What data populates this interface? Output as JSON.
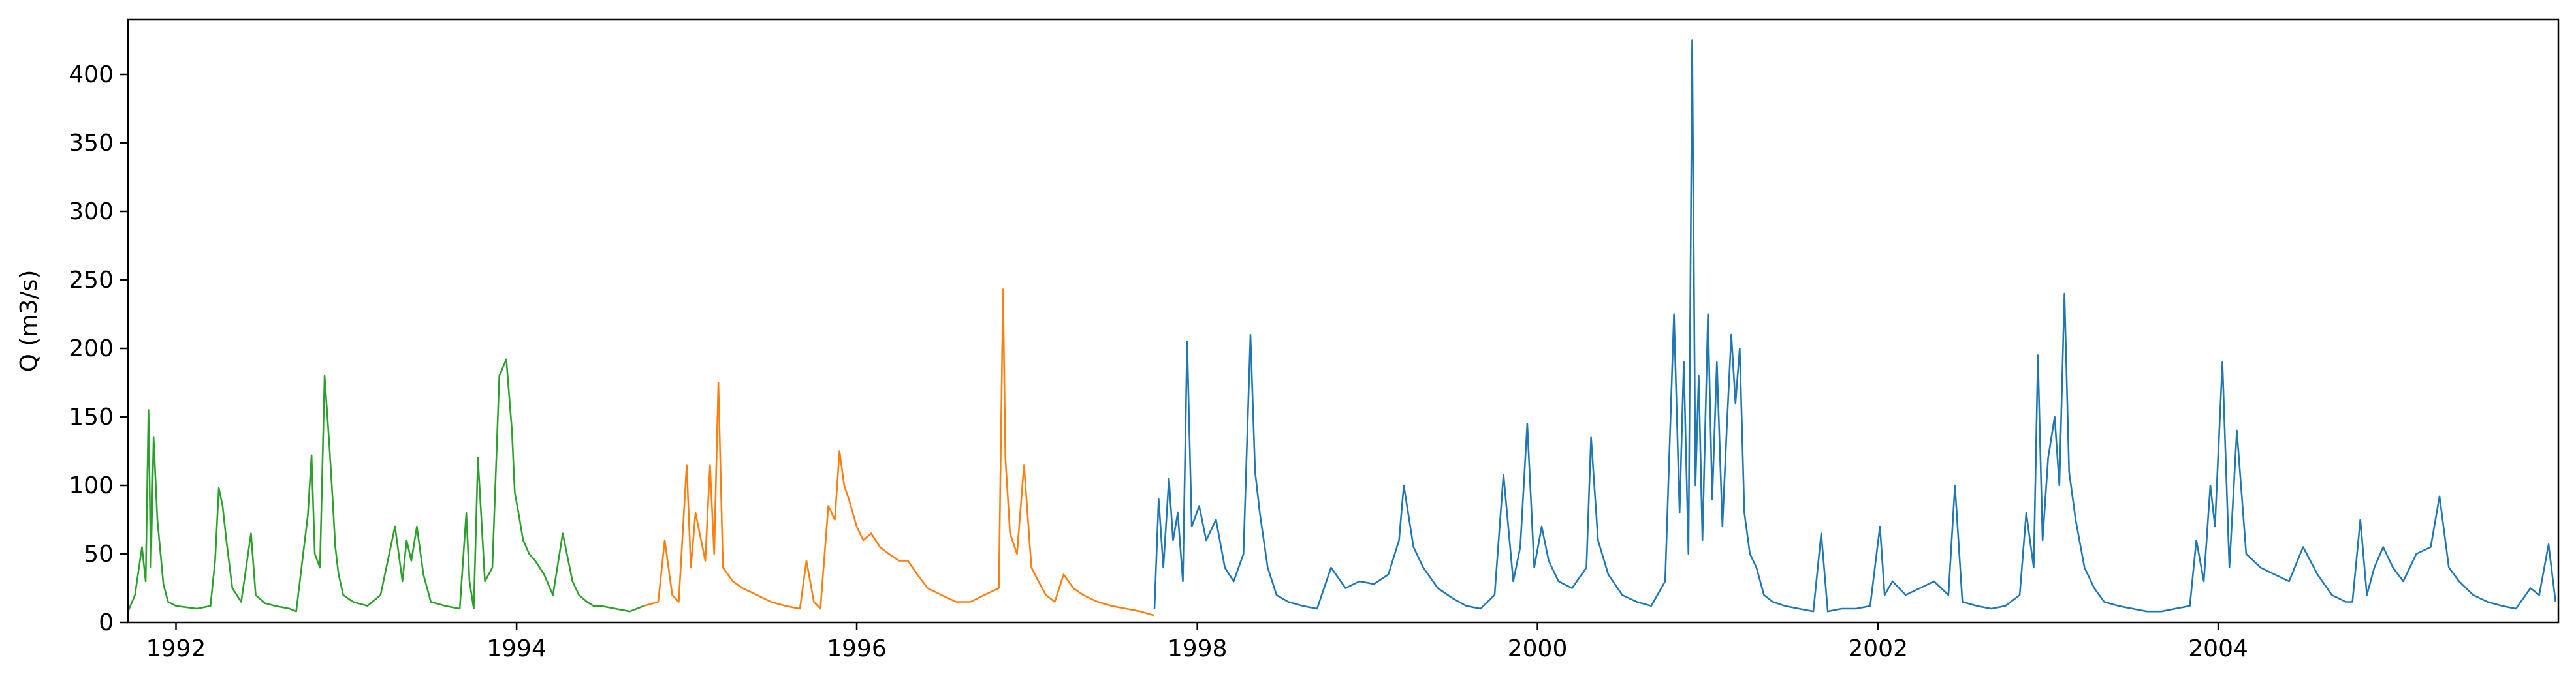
{
  "chart_data": {
    "type": "line",
    "title": "",
    "xlabel": "",
    "ylabel": "Q (m3/s)",
    "xlim": [
      "1991-09-20",
      "2005-12-31"
    ],
    "ylim": [
      0,
      440
    ],
    "x_ticks": [
      "1992",
      "1994",
      "1996",
      "1998",
      "2000",
      "2002",
      "2004"
    ],
    "y_ticks": [
      0,
      50,
      100,
      150,
      200,
      250,
      300,
      350,
      400
    ],
    "grid": false,
    "legend": "none",
    "series": [
      {
        "color": "#2ca02c",
        "x": [
          "1991-09-20",
          "1991-10-05",
          "1991-10-20",
          "1991-10-28",
          "1991-11-03",
          "1991-11-08",
          "1991-11-14",
          "1991-11-22",
          "1991-12-05",
          "1991-12-15",
          "1992-01-01",
          "1992-02-15",
          "1992-03-15",
          "1992-03-25",
          "1992-04-02",
          "1992-04-10",
          "1992-04-18",
          "1992-05-01",
          "1992-05-20",
          "1992-06-10",
          "1992-06-20",
          "1992-07-10",
          "1992-08-01",
          "1992-09-01",
          "1992-09-15",
          "1992-10-10",
          "1992-10-18",
          "1992-10-25",
          "1992-11-05",
          "1992-11-15",
          "1992-11-25",
          "1992-12-03",
          "1992-12-08",
          "1992-12-15",
          "1992-12-25",
          "1993-01-15",
          "1993-02-15",
          "1993-03-15",
          "1993-04-15",
          "1993-05-01",
          "1993-05-10",
          "1993-05-20",
          "1993-06-01",
          "1993-06-15",
          "1993-07-01",
          "1993-08-01",
          "1993-09-01",
          "1993-09-15",
          "1993-09-22",
          "1993-10-01",
          "1993-10-10",
          "1993-10-25",
          "1993-11-10",
          "1993-11-25",
          "1993-12-10",
          "1993-12-22",
          "1993-12-28",
          "1994-01-05",
          "1994-01-15",
          "1994-01-28",
          "1994-02-10",
          "1994-03-01",
          "1994-03-20",
          "1994-04-10",
          "1994-05-01",
          "1994-05-15",
          "1994-06-01",
          "1994-06-15",
          "1994-07-01",
          "1994-08-01",
          "1994-09-01",
          "1994-10-01"
        ],
        "values": [
          8,
          20,
          55,
          30,
          155,
          40,
          135,
          75,
          28,
          15,
          12,
          10,
          12,
          45,
          98,
          85,
          60,
          25,
          15,
          65,
          20,
          14,
          12,
          10,
          8,
          78,
          122,
          50,
          40,
          180,
          130,
          85,
          55,
          35,
          20,
          15,
          12,
          20,
          70,
          30,
          60,
          45,
          70,
          35,
          15,
          12,
          10,
          80,
          30,
          10,
          120,
          30,
          40,
          180,
          192,
          140,
          95,
          80,
          60,
          50,
          45,
          35,
          20,
          65,
          30,
          20,
          15,
          12,
          12,
          10,
          8,
          12
        ]
      },
      {
        "color": "#ff7f0e",
        "x": [
          "1994-10-01",
          "1994-11-01",
          "1994-11-15",
          "1994-12-01",
          "1994-12-15",
          "1995-01-01",
          "1995-01-10",
          "1995-01-20",
          "1995-02-01",
          "1995-02-10",
          "1995-02-20",
          "1995-03-01",
          "1995-03-10",
          "1995-03-20",
          "1995-04-10",
          "1995-05-01",
          "1995-06-01",
          "1995-07-01",
          "1995-08-01",
          "1995-09-01",
          "1995-09-15",
          "1995-10-01",
          "1995-10-15",
          "1995-11-01",
          "1995-11-15",
          "1995-11-25",
          "1995-12-05",
          "1995-12-15",
          "1996-01-01",
          "1996-01-15",
          "1996-02-01",
          "1996-02-20",
          "1996-03-10",
          "1996-04-01",
          "1996-04-20",
          "1996-05-10",
          "1996-06-01",
          "1996-07-01",
          "1996-08-01",
          "1996-09-01",
          "1996-10-01",
          "1996-11-01",
          "1996-11-10",
          "1996-11-15",
          "1996-11-25",
          "1996-12-10",
          "1996-12-25",
          "1997-01-10",
          "1997-01-25",
          "1997-02-10",
          "1997-03-01",
          "1997-03-20",
          "1997-04-10",
          "1997-05-01",
          "1997-06-01",
          "1997-07-01",
          "1997-08-01",
          "1997-09-01",
          "1997-10-01"
        ],
        "values": [
          12,
          15,
          60,
          20,
          15,
          115,
          40,
          80,
          60,
          45,
          115,
          50,
          175,
          40,
          30,
          25,
          20,
          15,
          12,
          10,
          45,
          15,
          10,
          85,
          75,
          125,
          100,
          90,
          70,
          60,
          65,
          55,
          50,
          45,
          45,
          35,
          25,
          20,
          15,
          15,
          20,
          25,
          243,
          120,
          65,
          50,
          115,
          40,
          30,
          20,
          15,
          35,
          25,
          20,
          15,
          12,
          10,
          8,
          5
        ]
      },
      {
        "color": "#1f77b4",
        "x": [
          "1997-10-01",
          "1997-10-10",
          "1997-10-20",
          "1997-11-01",
          "1997-11-10",
          "1997-11-20",
          "1997-12-01",
          "1997-12-10",
          "1997-12-20",
          "1998-01-05",
          "1998-01-20",
          "1998-02-10",
          "1998-03-01",
          "1998-03-20",
          "1998-04-10",
          "1998-04-25",
          "1998-05-05",
          "1998-05-15",
          "1998-06-01",
          "1998-06-20",
          "1998-07-15",
          "1998-08-15",
          "1998-09-15",
          "1998-10-15",
          "1998-11-15",
          "1998-12-15",
          "1999-01-15",
          "1999-02-15",
          "1999-03-10",
          "1999-03-20",
          "1999-04-10",
          "1999-05-01",
          "1999-06-01",
          "1999-07-01",
          "1999-08-01",
          "1999-09-01",
          "1999-10-01",
          "1999-10-20",
          "1999-11-10",
          "1999-11-25",
          "1999-12-10",
          "1999-12-25",
          "2000-01-10",
          "2000-01-25",
          "2000-02-15",
          "2000-03-15",
          "2000-04-15",
          "2000-04-25",
          "2000-05-10",
          "2000-06-01",
          "2000-07-01",
          "2000-08-01",
          "2000-09-01",
          "2000-10-01",
          "2000-10-20",
          "2000-11-01",
          "2000-11-10",
          "2000-11-20",
          "2000-11-28",
          "2000-12-05",
          "2000-12-12",
          "2000-12-20",
          "2001-01-01",
          "2001-01-10",
          "2001-01-20",
          "2001-02-01",
          "2001-02-10",
          "2001-02-20",
          "2001-03-01",
          "2001-03-10",
          "2001-03-20",
          "2001-04-01",
          "2001-04-15",
          "2001-05-01",
          "2001-05-20",
          "2001-06-15",
          "2001-07-15",
          "2001-08-15",
          "2001-09-01",
          "2001-09-15",
          "2001-10-15",
          "2001-11-15",
          "2001-12-15",
          "2002-01-05",
          "2002-01-15",
          "2002-02-01",
          "2002-03-01",
          "2002-04-01",
          "2002-05-01",
          "2002-06-01",
          "2002-06-15",
          "2002-07-01",
          "2002-08-01",
          "2002-09-01",
          "2002-10-01",
          "2002-11-01",
          "2002-11-15",
          "2002-12-01",
          "2002-12-10",
          "2002-12-20",
          "2003-01-01",
          "2003-01-15",
          "2003-01-25",
          "2003-02-05",
          "2003-02-15",
          "2003-03-01",
          "2003-03-20",
          "2003-04-10",
          "2003-05-01",
          "2003-06-01",
          "2003-07-01",
          "2003-08-01",
          "2003-09-01",
          "2003-10-01",
          "2003-11-01",
          "2003-11-15",
          "2003-12-01",
          "2003-12-15",
          "2003-12-25",
          "2004-01-10",
          "2004-01-25",
          "2004-02-10",
          "2004-03-01",
          "2004-04-01",
          "2004-05-01",
          "2004-06-01",
          "2004-07-01",
          "2004-08-01",
          "2004-09-01",
          "2004-10-01",
          "2004-10-15",
          "2004-11-01",
          "2004-11-15",
          "2004-12-01",
          "2004-12-20",
          "2005-01-10",
          "2005-02-01",
          "2005-03-01",
          "2005-04-01",
          "2005-04-20",
          "2005-05-10",
          "2005-06-01",
          "2005-07-01",
          "2005-08-01",
          "2005-09-01",
          "2005-10-01",
          "2005-11-01",
          "2005-11-20",
          "2005-12-10",
          "2005-12-25"
        ],
        "values": [
          10,
          90,
          40,
          105,
          60,
          80,
          30,
          205,
          70,
          85,
          60,
          75,
          40,
          30,
          50,
          210,
          110,
          80,
          40,
          20,
          15,
          12,
          10,
          40,
          25,
          30,
          28,
          35,
          60,
          100,
          55,
          40,
          25,
          18,
          12,
          10,
          20,
          108,
          30,
          55,
          145,
          40,
          70,
          45,
          30,
          25,
          40,
          135,
          60,
          35,
          20,
          15,
          12,
          30,
          225,
          80,
          190,
          50,
          425,
          100,
          180,
          60,
          225,
          90,
          190,
          70,
          140,
          210,
          160,
          200,
          80,
          50,
          40,
          20,
          15,
          12,
          10,
          8,
          65,
          8,
          10,
          10,
          12,
          70,
          20,
          30,
          20,
          25,
          30,
          20,
          100,
          15,
          12,
          10,
          12,
          20,
          80,
          40,
          195,
          60,
          120,
          150,
          100,
          240,
          110,
          75,
          40,
          25,
          15,
          12,
          10,
          8,
          8,
          10,
          12,
          60,
          30,
          100,
          70,
          190,
          40,
          140,
          50,
          40,
          35,
          30,
          55,
          35,
          20,
          15,
          15,
          75,
          20,
          40,
          55,
          40,
          30,
          50,
          55,
          92,
          40,
          30,
          20,
          15,
          12,
          10,
          25,
          20,
          57,
          15
        ]
      }
    ]
  }
}
